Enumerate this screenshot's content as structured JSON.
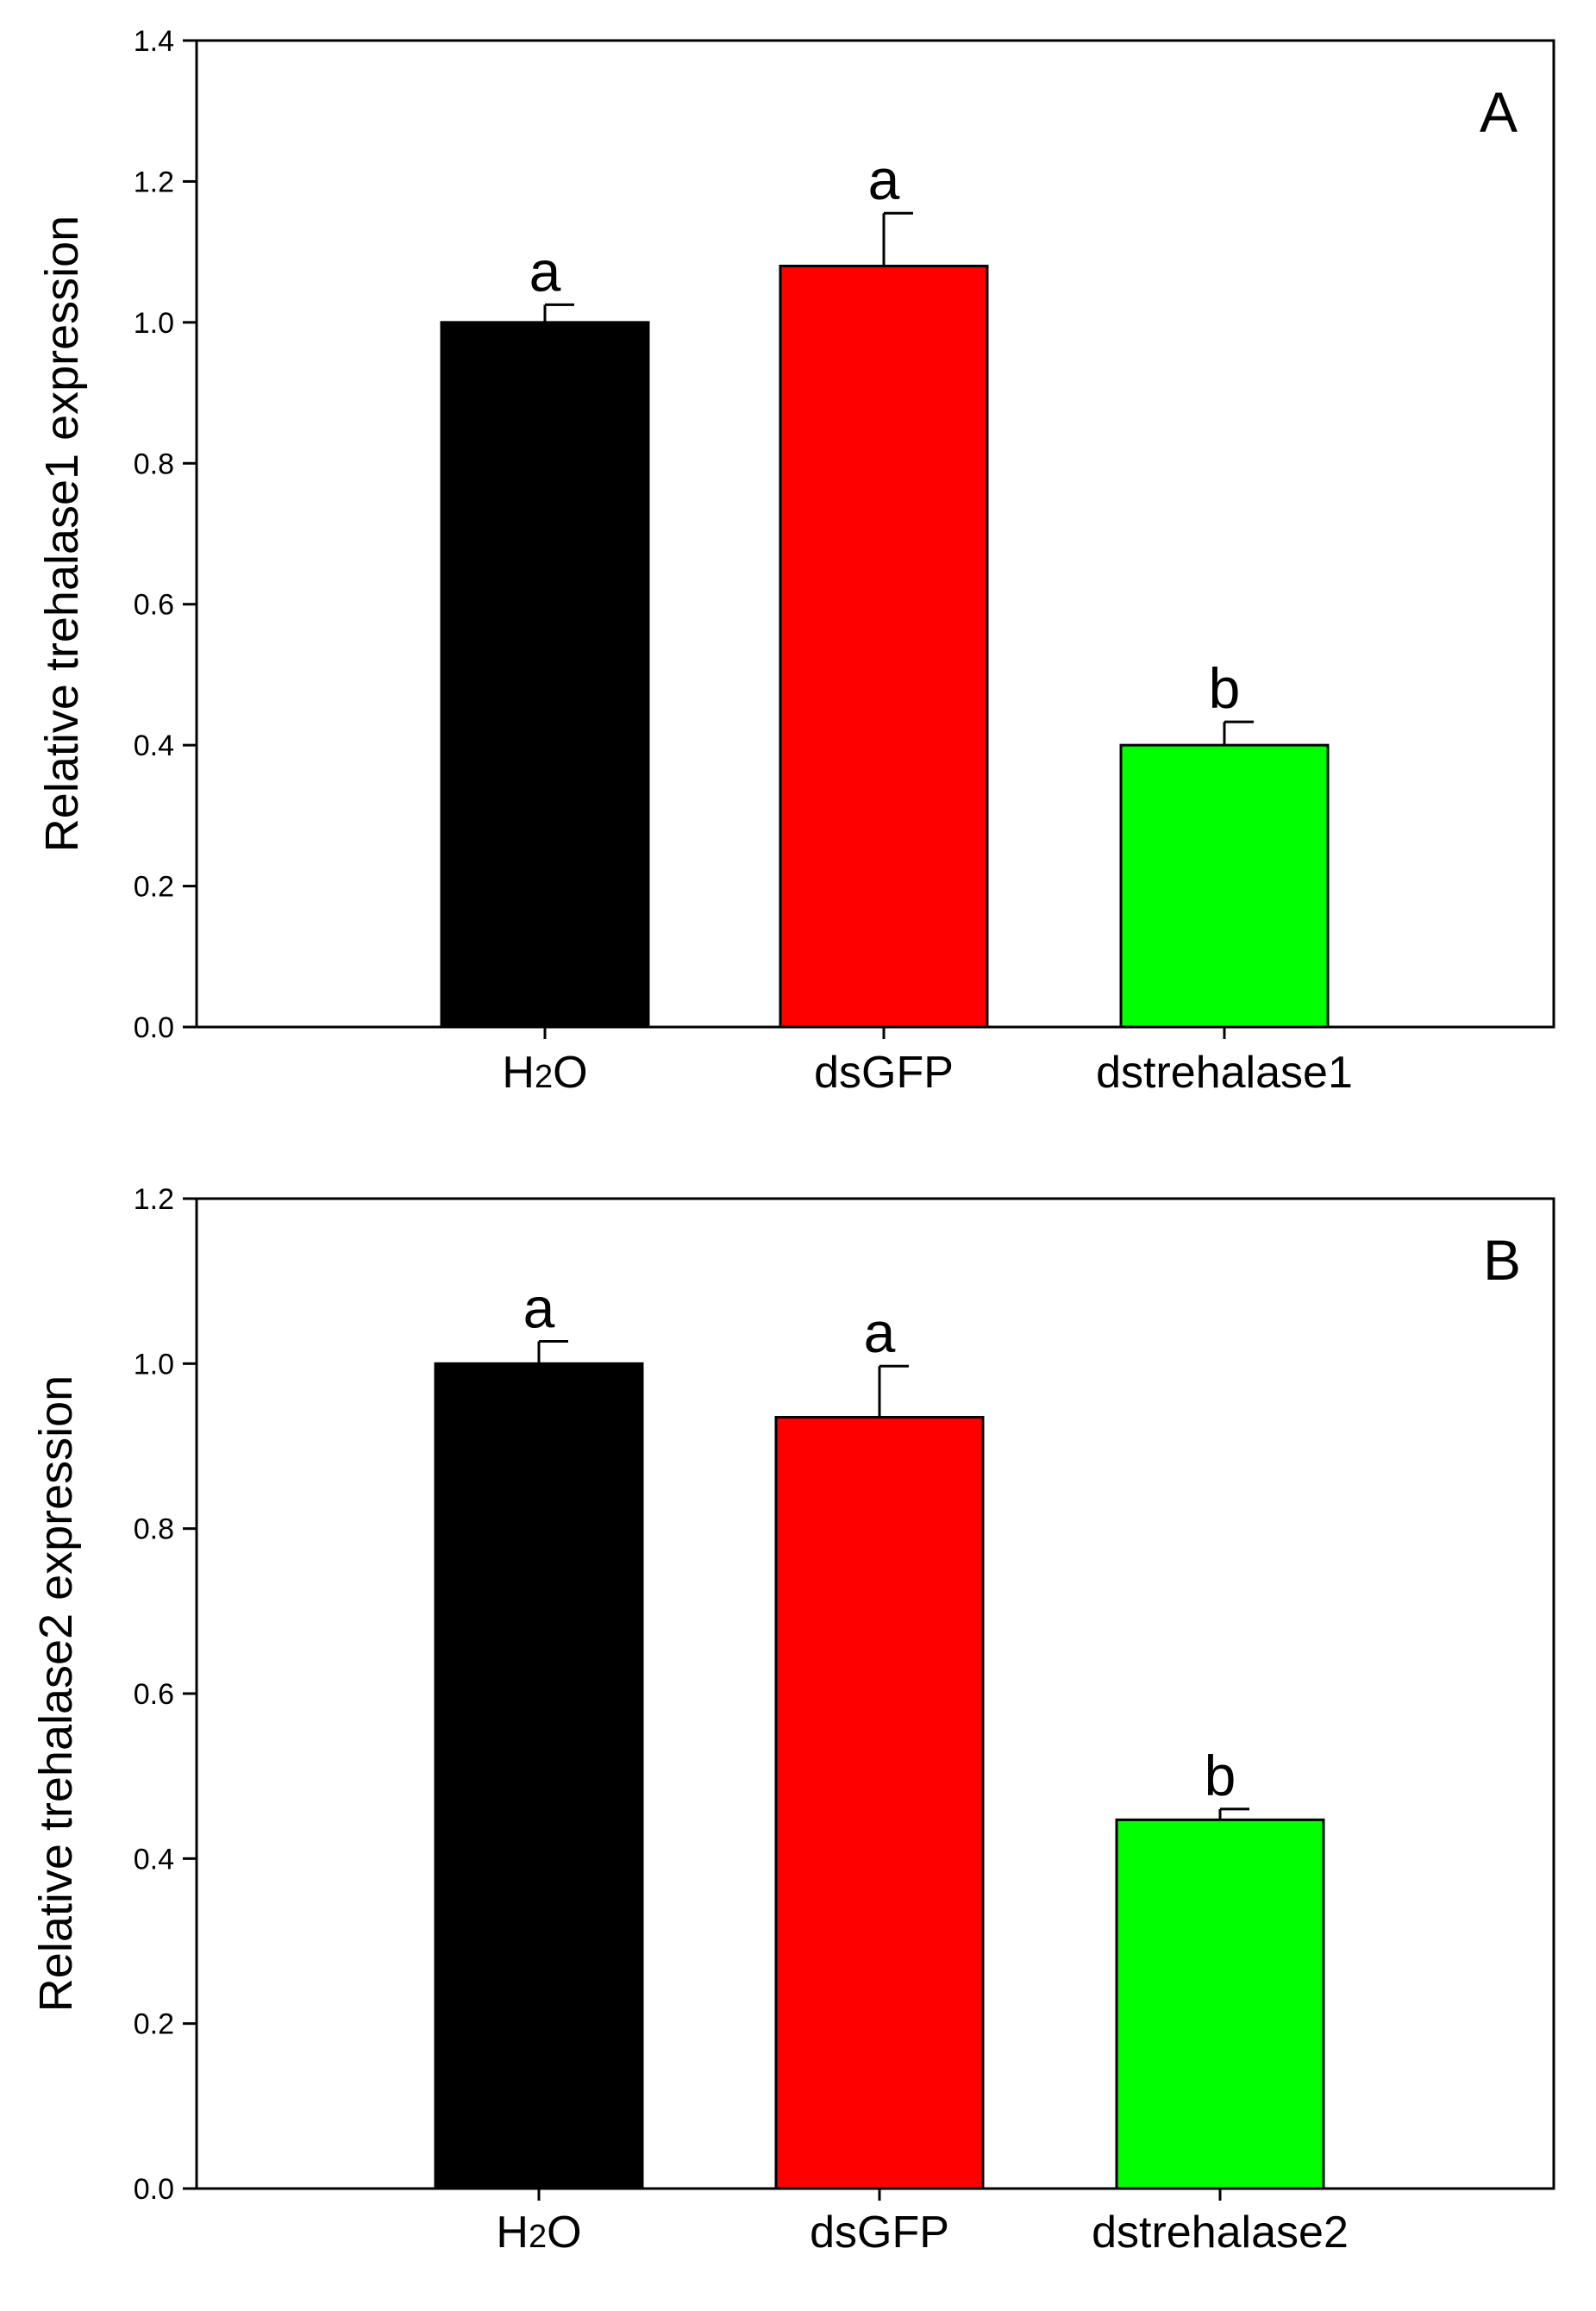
{
  "colors": {
    "background": "#ffffff",
    "axis": "#000000",
    "bar_h2o": "#000000",
    "bar_dsgfp": "#ff0000",
    "bar_dstrehalase": "#00ff00"
  },
  "chart_data": [
    {
      "type": "bar",
      "panel": "A",
      "title": "",
      "xlabel": "",
      "ylabel": "Relative trehalase1 expression",
      "ylim": [
        0,
        1.4
      ],
      "yticks": [
        0.0,
        0.2,
        0.4,
        0.6,
        0.8,
        1.0,
        1.2,
        1.4
      ],
      "ytick_labels": [
        "0.0",
        "0.2",
        "0.4",
        "0.6",
        "0.8",
        "1.0",
        "1.2",
        "1.4"
      ],
      "categories": [
        {
          "main": "H",
          "sub": "2",
          "rest": "O"
        },
        {
          "main": "dsGFP",
          "sub": "",
          "rest": ""
        },
        {
          "main": "dstrehalase1",
          "sub": "",
          "rest": ""
        }
      ],
      "values": [
        1.0,
        1.08,
        0.4
      ],
      "errors": [
        0.025,
        0.075,
        0.033
      ],
      "significance": [
        "a",
        "a",
        "b"
      ],
      "bar_colors": [
        "#000000",
        "#ff0000",
        "#00ff00"
      ],
      "grid": false,
      "legend": "none"
    },
    {
      "type": "bar",
      "panel": "B",
      "title": "",
      "xlabel": "",
      "ylabel": "Relative trehalase2 expression",
      "ylim": [
        0,
        1.2
      ],
      "yticks": [
        0.0,
        0.2,
        0.4,
        0.6,
        0.8,
        1.0,
        1.2
      ],
      "ytick_labels": [
        "0.0",
        "0.2",
        "0.4",
        "0.6",
        "0.8",
        "1.0",
        "1.2"
      ],
      "categories": [
        {
          "main": "H",
          "sub": "2",
          "rest": "O"
        },
        {
          "main": "dsGFP",
          "sub": "",
          "rest": ""
        },
        {
          "main": "dstrehalase2",
          "sub": "",
          "rest": ""
        }
      ],
      "values": [
        1.0,
        0.935,
        0.447
      ],
      "errors": [
        0.027,
        0.062,
        0.013
      ],
      "significance": [
        "a",
        "a",
        "b"
      ],
      "bar_colors": [
        "#000000",
        "#ff0000",
        "#00ff00"
      ],
      "grid": false,
      "legend": "none"
    }
  ]
}
